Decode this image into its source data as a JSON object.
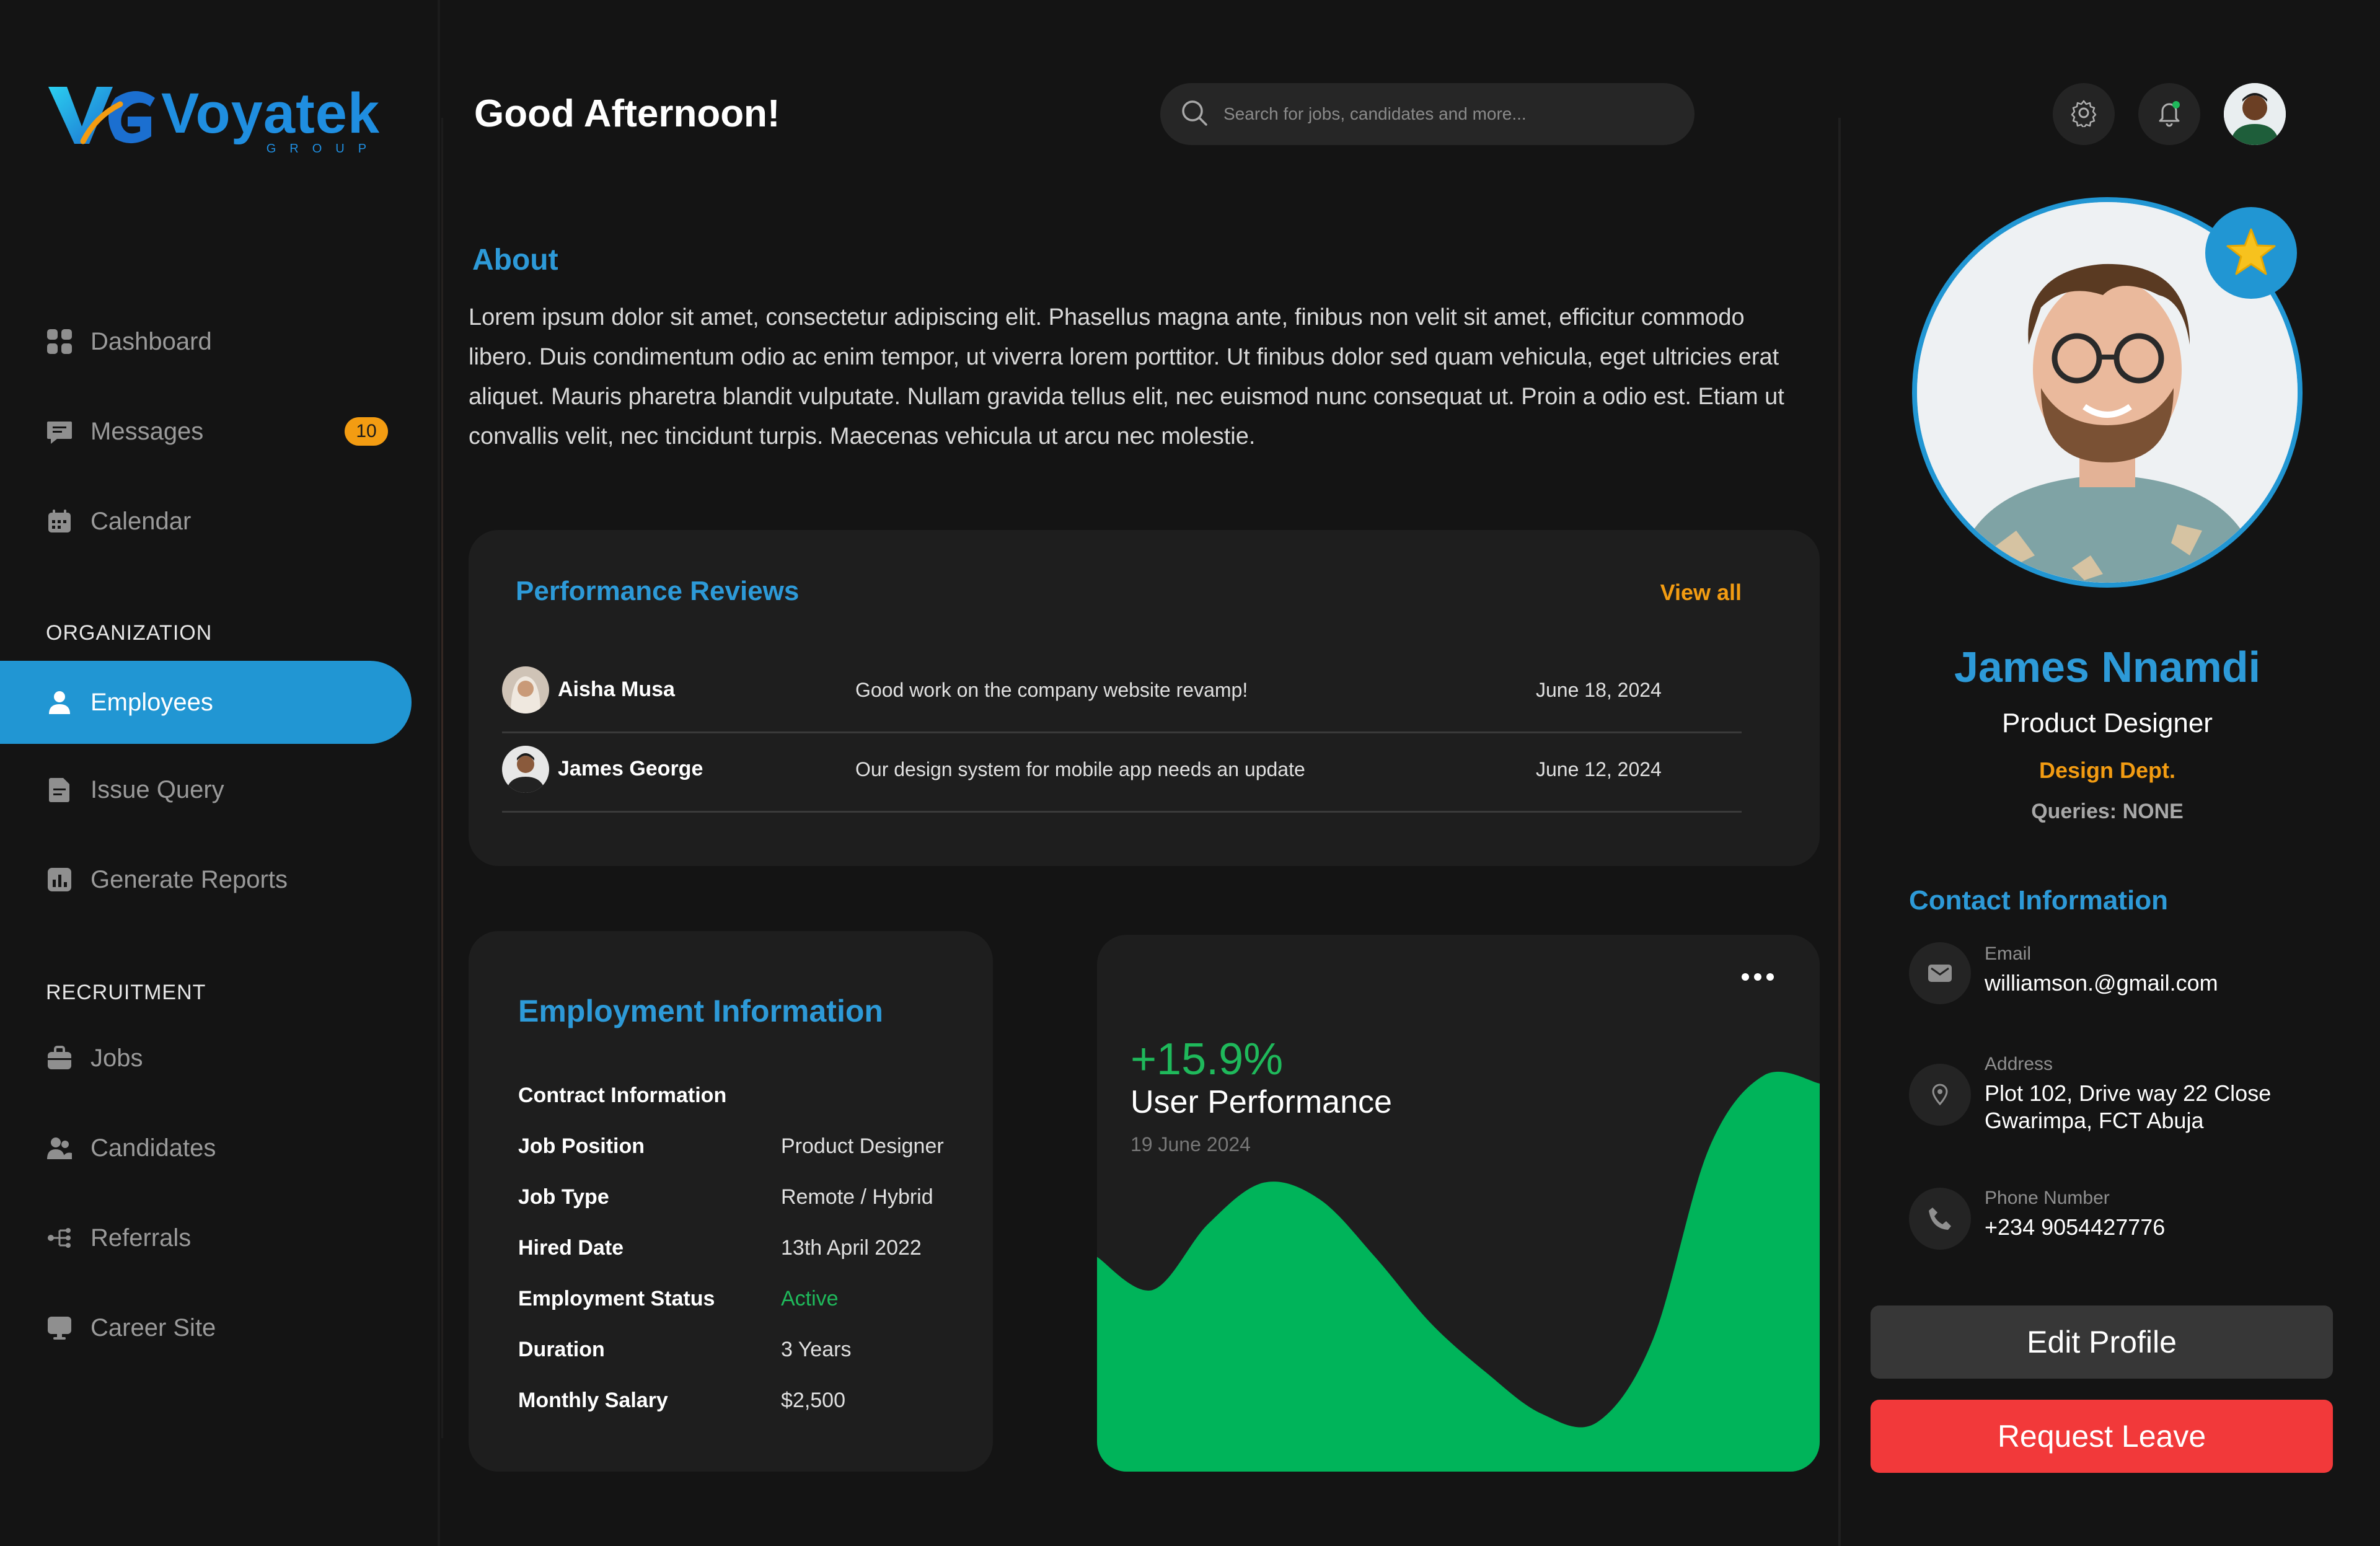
{
  "brand": {
    "name": "Voyatek",
    "sub": "GROUP",
    "mark": "VG"
  },
  "sidebar": {
    "items": [
      {
        "label": "Dashboard",
        "icon": "dashboard-icon"
      },
      {
        "label": "Messages",
        "icon": "message-icon",
        "badge": "10"
      },
      {
        "label": "Calendar",
        "icon": "calendar-icon"
      }
    ],
    "org_heading": "ORGANIZATION",
    "org_items": [
      {
        "label": "Employees",
        "icon": "user-icon",
        "active": true
      },
      {
        "label": "Issue Query",
        "icon": "document-icon"
      },
      {
        "label": "Generate Reports",
        "icon": "report-icon"
      }
    ],
    "rec_heading": "RECRUITMENT",
    "rec_items": [
      {
        "label": "Jobs",
        "icon": "briefcase-icon"
      },
      {
        "label": "Candidates",
        "icon": "people-icon"
      },
      {
        "label": "Referrals",
        "icon": "referral-icon"
      },
      {
        "label": "Career Site",
        "icon": "monitor-icon"
      }
    ]
  },
  "header": {
    "greeting": "Good Afternoon!",
    "search_placeholder": "Search for jobs, candidates and more..."
  },
  "about": {
    "title": "About",
    "text": "Lorem ipsum dolor sit amet, consectetur adipiscing elit. Phasellus magna ante, finibus non velit sit amet, efficitur commodo libero. Duis condimentum odio ac enim tempor, ut viverra lorem porttitor. Ut finibus dolor sed quam vehicula, eget ultricies erat aliquet. Mauris pharetra blandit vulputate. Nullam gravida tellus elit, nec euismod nunc consequat ut. Proin a odio est. Etiam ut convallis velit, nec tincidunt turpis. Maecenas vehicula ut arcu nec molestie."
  },
  "reviews": {
    "title": "Performance Reviews",
    "view_all": "View all",
    "rows": [
      {
        "name": "Aisha Musa",
        "comment": "Good work on the company website revamp!",
        "date": "June 18, 2024"
      },
      {
        "name": "James George",
        "comment": "Our design system for mobile app needs an update",
        "date": "June 12, 2024"
      }
    ]
  },
  "employment": {
    "title": "Employment Information",
    "section": "Contract Information",
    "rows": [
      {
        "key": "Job Position",
        "value": "Product Designer"
      },
      {
        "key": "Job Type",
        "value": "Remote / Hybrid"
      },
      {
        "key": "Hired Date",
        "value": "13th April 2022"
      },
      {
        "key": "Employment Status",
        "value": "Active"
      },
      {
        "key": "Duration",
        "value": "3 Years"
      },
      {
        "key": "Monthly Salary",
        "value": "$2,500"
      }
    ],
    "status_color": "#1fb95b"
  },
  "performance": {
    "change": "+15.9%",
    "label": "User Performance",
    "date": "19 June 2024",
    "color": "#00b45a"
  },
  "chart_data": {
    "type": "area",
    "title": "User Performance",
    "values": [
      52,
      44,
      60,
      70,
      66,
      52,
      36,
      24,
      14,
      12,
      32,
      78,
      96,
      94
    ],
    "ylim": [
      0,
      100
    ],
    "grid": false
  },
  "profile": {
    "name": "James Nnamdi",
    "role": "Product Designer",
    "dept": "Design Dept.",
    "queries": "Queries: NONE",
    "badge_icon": "star-icon"
  },
  "contact": {
    "title": "Contact Information",
    "email_label": "Email",
    "email": "williamson.@gmail.com",
    "address_label": "Address",
    "address_line1": "Plot 102, Drive way 22 Close",
    "address_line2": "Gwarimpa, FCT Abuja",
    "phone_label": "Phone Number",
    "phone": "+234 9054427776"
  },
  "actions": {
    "edit": "Edit Profile",
    "leave": "Request Leave"
  },
  "colors": {
    "accent": "#2196d3",
    "orange": "#f39c12",
    "danger": "#f2393a",
    "bg": "#141414",
    "card": "#1e1e1e"
  }
}
